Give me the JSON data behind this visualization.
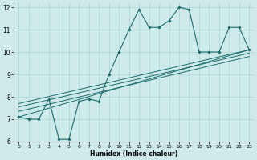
{
  "xlabel": "Humidex (Indice chaleur)",
  "bg_color": "#ceeaea",
  "grid_color": "#b0d8d8",
  "line_color": "#1a6b6b",
  "xlim": [
    -0.5,
    23.5
  ],
  "ylim": [
    6,
    12.2
  ],
  "xticks": [
    0,
    1,
    2,
    3,
    4,
    5,
    6,
    7,
    8,
    9,
    10,
    11,
    12,
    13,
    14,
    15,
    16,
    17,
    18,
    19,
    20,
    21,
    22,
    23
  ],
  "yticks": [
    6,
    7,
    8,
    9,
    10,
    11,
    12
  ],
  "main_x": [
    0,
    1,
    2,
    3,
    4,
    5,
    6,
    7,
    8,
    9,
    10,
    11,
    12,
    13,
    14,
    15,
    16,
    17,
    18,
    19,
    20,
    21,
    22,
    23
  ],
  "main_y": [
    7.1,
    7.0,
    7.0,
    7.9,
    6.1,
    6.1,
    7.8,
    7.9,
    7.8,
    9.0,
    10.0,
    11.0,
    11.9,
    11.1,
    11.1,
    11.4,
    12.0,
    11.9,
    10.0,
    10.0,
    10.0,
    11.1,
    11.1,
    10.1
  ],
  "reg_lines": [
    {
      "x0": 0,
      "y0": 7.1,
      "x1": 23,
      "y1": 10.1
    },
    {
      "x0": 0,
      "y0": 7.35,
      "x1": 23,
      "y1": 9.8
    },
    {
      "x0": 0,
      "y0": 7.55,
      "x1": 23,
      "y1": 9.95
    },
    {
      "x0": 0,
      "y0": 7.7,
      "x1": 23,
      "y1": 10.1
    }
  ]
}
